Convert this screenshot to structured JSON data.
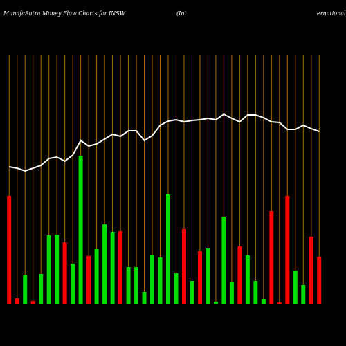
{
  "chart_data": {
    "type": "bar",
    "title": "MunafaSutra  Money Flow  Charts for INSW",
    "subtitle": "(Int",
    "subtitle_tail": "ernational",
    "categories": [
      null,
      null,
      null,
      null,
      null,
      null,
      null,
      null,
      null,
      null,
      null,
      null,
      null,
      null,
      null,
      null,
      null,
      null,
      null,
      null,
      null,
      null,
      null,
      null,
      null,
      null,
      null,
      null,
      null,
      null,
      null,
      null,
      null,
      null,
      null,
      null,
      null,
      null,
      null,
      null
    ],
    "values": [
      157,
      9,
      43,
      5,
      44,
      100,
      101,
      90,
      59,
      215,
      70,
      80,
      116,
      105,
      106,
      54,
      54,
      18,
      72,
      68,
      159,
      45,
      109,
      34,
      77,
      81,
      4,
      127,
      32,
      84,
      71,
      34,
      8,
      135,
      3,
      157,
      49,
      28,
      98,
      69
    ],
    "colors": [
      "#ff0000",
      "#ff0000",
      "#00dd00",
      "#ff0000",
      "#00dd00",
      "#00dd00",
      "#00dd00",
      "#ff0000",
      "#00dd00",
      "#00dd00",
      "#ff0000",
      "#00dd00",
      "#00dd00",
      "#00dd00",
      "#ff0000",
      "#00dd00",
      "#00dd00",
      "#00dd00",
      "#00dd00",
      "#00dd00",
      "#00dd00",
      "#00dd00",
      "#ff0000",
      "#00dd00",
      "#ff0000",
      "#00dd00",
      "#00dd00",
      "#00dd00",
      "#00dd00",
      "#ff0000",
      "#00dd00",
      "#00dd00",
      "#00dd00",
      "#ff0000",
      "#ff0000",
      "#ff0000",
      "#00dd00",
      "#00dd00",
      "#ff0000",
      "#ff0000"
    ],
    "line": {
      "color": "#ffffff",
      "values": [
        199,
        197,
        193,
        197,
        201,
        211,
        213,
        207,
        216,
        237,
        229,
        232,
        239,
        246,
        243,
        251,
        251,
        237,
        244,
        259,
        265,
        267,
        264,
        266,
        267,
        269,
        267,
        275,
        269,
        264,
        274,
        274,
        270,
        264,
        263,
        253,
        253,
        259,
        254,
        250
      ]
    },
    "grid_color": "#b36b00",
    "ylim": [
      0,
      360
    ]
  }
}
